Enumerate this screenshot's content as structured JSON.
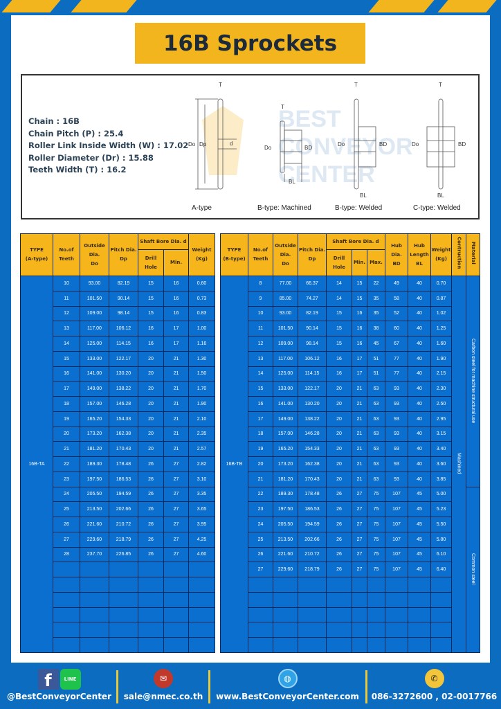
{
  "title": "16B Sprockets",
  "specs": [
    "Chain  :  16B",
    "Chain Pitch (P)  :  25.4",
    "Roller Link Inside Width (W)  :  17.02",
    "Roller Diameter (Dr)  : 15.88",
    "Teeth Width (T)  :  16.2"
  ],
  "diagram": {
    "captions": [
      "A-type",
      "B-type: Machined",
      "B-type: Welded",
      "C-type: Welded"
    ],
    "labels": {
      "t": "T",
      "do": "Do",
      "dp": "Dp",
      "d": "d",
      "bd": "BD",
      "bl": "BL"
    },
    "watermark": [
      "BEST",
      "CONVEYOR",
      "CENTER"
    ]
  },
  "tableA": {
    "headers": {
      "type": "TYPE",
      "type_sub": "(A-type)",
      "teeth": "No.of",
      "teeth_sub": "Teeth",
      "do": "Outside",
      "do_sub": "Dia.",
      "do_sub2": "Do",
      "dp": "Pitch Dia.",
      "dp_sub": "Dp",
      "bore": "Shaft Bore Dia. d",
      "drill": "Drill Hole",
      "min": "Min.",
      "weight": "Weight",
      "weight_sub": "(Kg)"
    },
    "type_label": "16B-TA",
    "rows": [
      [
        "10",
        "93.00",
        "82.19",
        "15",
        "16",
        "0.60"
      ],
      [
        "11",
        "101.50",
        "90.14",
        "15",
        "16",
        "0.73"
      ],
      [
        "12",
        "109.00",
        "98.14",
        "15",
        "16",
        "0.83"
      ],
      [
        "13",
        "117.00",
        "106.12",
        "16",
        "17",
        "1.00"
      ],
      [
        "14",
        "125.00",
        "114.15",
        "16",
        "17",
        "1.16"
      ],
      [
        "15",
        "133.00",
        "122.17",
        "20",
        "21",
        "1.30"
      ],
      [
        "16",
        "141.00",
        "130.20",
        "20",
        "21",
        "1.50"
      ],
      [
        "17",
        "149.00",
        "138.22",
        "20",
        "21",
        "1.70"
      ],
      [
        "18",
        "157.00",
        "146.28",
        "20",
        "21",
        "1.90"
      ],
      [
        "19",
        "165.20",
        "154.33",
        "20",
        "21",
        "2.10"
      ],
      [
        "20",
        "173.20",
        "162.38",
        "20",
        "21",
        "2.35"
      ],
      [
        "21",
        "181.20",
        "170.43",
        "20",
        "21",
        "2.57"
      ],
      [
        "22",
        "189.30",
        "178.48",
        "26",
        "27",
        "2.82"
      ],
      [
        "23",
        "197.50",
        "186.53",
        "26",
        "27",
        "3.10"
      ],
      [
        "24",
        "205.50",
        "194.59",
        "26",
        "27",
        "3.35"
      ],
      [
        "25",
        "213.50",
        "202.66",
        "26",
        "27",
        "3.65"
      ],
      [
        "26",
        "221.60",
        "210.72",
        "26",
        "27",
        "3.95"
      ],
      [
        "27",
        "229.60",
        "218.79",
        "26",
        "27",
        "4.25"
      ],
      [
        "28",
        "237.70",
        "226.85",
        "26",
        "27",
        "4.60"
      ]
    ]
  },
  "tableB": {
    "headers": {
      "type": "TYPE",
      "type_sub": "(B-type)",
      "teeth": "No.of",
      "teeth_sub": "Teeth",
      "do": "Outside",
      "do_sub": "Dia.",
      "do_sub2": "Do",
      "dp": "Pitch Dia.",
      "dp_sub": "Dp",
      "bore": "Shaft Bore Dia. d",
      "drill": "Drill Hole",
      "min": "Min.",
      "max": "Max.",
      "bd": "Hub Dia.",
      "bd_sub": "BD",
      "bl": "Hub",
      "bl_sub": "Length",
      "bl_sub2": "BL",
      "weight": "Weight",
      "weight_sub": "(Kg)",
      "construction": "Contruction",
      "material": "Material"
    },
    "type_label": "16B-TB",
    "construction": "Machined",
    "material_1": "Carbon steel for machine structural use",
    "material_2": "Common steel",
    "rows": [
      [
        "8",
        "77.00",
        "66.37",
        "14",
        "15",
        "22",
        "49",
        "40",
        "0.70"
      ],
      [
        "9",
        "85.00",
        "74.27",
        "14",
        "15",
        "35",
        "58",
        "40",
        "0.87"
      ],
      [
        "10",
        "93.00",
        "82.19",
        "15",
        "16",
        "35",
        "52",
        "40",
        "1.02"
      ],
      [
        "11",
        "101.50",
        "90.14",
        "15",
        "16",
        "38",
        "60",
        "40",
        "1.25"
      ],
      [
        "12",
        "109.00",
        "98.14",
        "15",
        "16",
        "45",
        "67",
        "40",
        "1.60"
      ],
      [
        "13",
        "117.00",
        "106.12",
        "16",
        "17",
        "51",
        "77",
        "40",
        "1.90"
      ],
      [
        "14",
        "125.00",
        "114.15",
        "16",
        "17",
        "51",
        "77",
        "40",
        "2.15"
      ],
      [
        "15",
        "133.00",
        "122.17",
        "20",
        "21",
        "63",
        "93",
        "40",
        "2.30"
      ],
      [
        "16",
        "141.00",
        "130.20",
        "20",
        "21",
        "63",
        "93",
        "40",
        "2.50"
      ],
      [
        "17",
        "149.00",
        "138.22",
        "20",
        "21",
        "63",
        "93",
        "40",
        "2.95"
      ],
      [
        "18",
        "157.00",
        "146.28",
        "20",
        "21",
        "63",
        "93",
        "40",
        "3.15"
      ],
      [
        "19",
        "165.20",
        "154.33",
        "20",
        "21",
        "63",
        "93",
        "40",
        "3.40"
      ],
      [
        "20",
        "173.20",
        "162.38",
        "20",
        "21",
        "63",
        "93",
        "40",
        "3.60"
      ],
      [
        "21",
        "181.20",
        "170.43",
        "20",
        "21",
        "63",
        "93",
        "40",
        "3.85"
      ],
      [
        "22",
        "189.30",
        "178.48",
        "26",
        "27",
        "75",
        "107",
        "45",
        "5.00"
      ],
      [
        "23",
        "197.50",
        "186.53",
        "26",
        "27",
        "75",
        "107",
        "45",
        "5.23"
      ],
      [
        "24",
        "205.50",
        "194.59",
        "26",
        "27",
        "75",
        "107",
        "45",
        "5.50"
      ],
      [
        "25",
        "213.50",
        "202.66",
        "26",
        "27",
        "75",
        "107",
        "45",
        "5.80"
      ],
      [
        "26",
        "221.60",
        "210.72",
        "26",
        "27",
        "75",
        "107",
        "45",
        "6.10"
      ],
      [
        "27",
        "229.60",
        "218.79",
        "26",
        "27",
        "75",
        "107",
        "45",
        "6.40"
      ]
    ]
  },
  "footer": {
    "social": "@BestConveyorCenter",
    "email": "sale@nmec.co.th",
    "website": "www.BestConveyorCenter.com",
    "phone": "086-3272600 , 02-0017766",
    "line_label": "LINE"
  },
  "colors": {
    "blue": "#0b6cc0",
    "cell": "#0b6fd0",
    "yellow": "#f2b51e",
    "border": "#0a2858"
  }
}
